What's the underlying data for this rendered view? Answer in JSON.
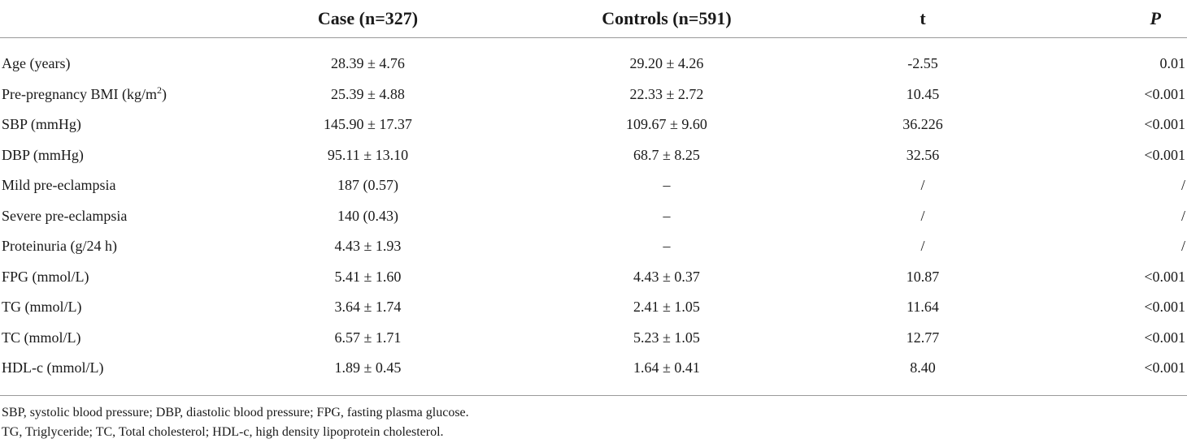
{
  "table": {
    "headers": {
      "label": "",
      "case": "Case (n=327)",
      "controls": "Controls (n=591)",
      "t": "t",
      "p": "P"
    },
    "rows": [
      {
        "label": "Age (years)",
        "label_sup": "",
        "label_after": "",
        "case": "28.39 ± 4.76",
        "controls": "29.20 ± 4.26",
        "t": "-2.55",
        "p": "0.01"
      },
      {
        "label": "Pre-pregnancy BMI (kg/m",
        "label_sup": "2",
        "label_after": ")",
        "case": "25.39 ± 4.88",
        "controls": "22.33 ± 2.72",
        "t": "10.45",
        "p": "<0.001"
      },
      {
        "label": "SBP (mmHg)",
        "label_sup": "",
        "label_after": "",
        "case": "145.90 ± 17.37",
        "controls": "109.67 ± 9.60",
        "t": "36.226",
        "p": "<0.001"
      },
      {
        "label": "DBP (mmHg)",
        "label_sup": "",
        "label_after": "",
        "case": "95.11 ± 13.10",
        "controls": "68.7 ± 8.25",
        "t": "32.56",
        "p": "<0.001"
      },
      {
        "label": "Mild pre-eclampsia",
        "label_sup": "",
        "label_after": "",
        "case": "187 (0.57)",
        "controls": "–",
        "t": "/",
        "p": "/"
      },
      {
        "label": "Severe pre-eclampsia",
        "label_sup": "",
        "label_after": "",
        "case": "140 (0.43)",
        "controls": "–",
        "t": "/",
        "p": "/"
      },
      {
        "label": "Proteinuria (g/24 h)",
        "label_sup": "",
        "label_after": "",
        "case": "4.43 ± 1.93",
        "controls": "–",
        "t": "/",
        "p": "/"
      },
      {
        "label": "FPG (mmol/L)",
        "label_sup": "",
        "label_after": "",
        "case": "5.41 ± 1.60",
        "controls": "4.43 ± 0.37",
        "t": "10.87",
        "p": "<0.001"
      },
      {
        "label": "TG (mmol/L)",
        "label_sup": "",
        "label_after": "",
        "case": "3.64 ± 1.74",
        "controls": "2.41 ± 1.05",
        "t": "11.64",
        "p": "<0.001"
      },
      {
        "label": "TC (mmol/L)",
        "label_sup": "",
        "label_after": "",
        "case": "6.57 ± 1.71",
        "controls": "5.23 ± 1.05",
        "t": "12.77",
        "p": "<0.001"
      },
      {
        "label": "HDL-c (mmol/L)",
        "label_sup": "",
        "label_after": "",
        "case": "1.89 ± 0.45",
        "controls": "1.64 ± 0.41",
        "t": "8.40",
        "p": "<0.001"
      }
    ]
  },
  "notes": [
    "SBP, systolic blood pressure; DBP, diastolic blood pressure; FPG, fasting plasma glucose.",
    "TG, Triglyceride; TC, Total cholesterol; HDL-c, high density lipoprotein cholesterol."
  ],
  "colors": {
    "text": "#1a1a1a",
    "rule": "#9a9a9a",
    "background": "#ffffff"
  }
}
